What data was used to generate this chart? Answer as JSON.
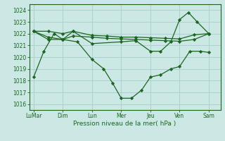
{
  "xlabel": "Pression niveau de la mer( hPa )",
  "ylim": [
    1015.5,
    1024.5
  ],
  "yticks": [
    1016,
    1017,
    1018,
    1019,
    1020,
    1021,
    1022,
    1023,
    1024
  ],
  "xtick_labels": [
    "LuMar",
    "Dim",
    "Lun",
    "Mer",
    "Jeu",
    "Ven",
    "Sam"
  ],
  "xtick_positions": [
    0,
    1,
    2,
    3,
    4,
    5,
    6
  ],
  "background_color": "#cce8e4",
  "grid_color": "#aacccc",
  "line_color": "#1a6620",
  "lines": [
    {
      "x": [
        0,
        0.35,
        0.7,
        1.0,
        1.5,
        2.0,
        2.4,
        2.7,
        3.0,
        3.35,
        3.7,
        4.0,
        4.35,
        4.7,
        5.0,
        5.35,
        5.7,
        6.0
      ],
      "y": [
        1018.3,
        1020.5,
        1022.0,
        1021.5,
        1021.3,
        1019.8,
        1019.0,
        1017.8,
        1016.5,
        1016.5,
        1017.2,
        1018.3,
        1018.5,
        1019.0,
        1019.2,
        1020.5,
        1020.5,
        1020.4
      ]
    },
    {
      "x": [
        0,
        0.5,
        1.0,
        1.35,
        2.0,
        2.5,
        3.0,
        3.5,
        4.0,
        4.5,
        5.0,
        5.5,
        6.0
      ],
      "y": [
        1022.2,
        1022.2,
        1022.0,
        1022.2,
        1021.85,
        1021.8,
        1021.7,
        1021.7,
        1021.65,
        1021.6,
        1021.55,
        1021.9,
        1022.0
      ]
    },
    {
      "x": [
        0,
        0.5,
        1.0,
        1.35,
        2.0,
        2.5,
        3.0,
        3.5,
        4.0,
        4.5,
        5.0,
        5.5,
        6.0
      ],
      "y": [
        1022.2,
        1021.7,
        1021.5,
        1021.8,
        1021.7,
        1021.6,
        1021.55,
        1021.5,
        1021.45,
        1021.4,
        1021.35,
        1021.5,
        1022.0
      ]
    },
    {
      "x": [
        0,
        0.5,
        1.0,
        1.35,
        2.0,
        3.0,
        3.5,
        4.0,
        4.35,
        4.7,
        5.0,
        5.3,
        5.6,
        6.0
      ],
      "y": [
        1022.2,
        1021.5,
        1021.5,
        1022.2,
        1021.15,
        1021.3,
        1021.4,
        1020.5,
        1020.5,
        1021.3,
        1023.2,
        1023.8,
        1023.0,
        1022.0
      ]
    }
  ],
  "xlim": [
    -0.15,
    6.4
  ]
}
